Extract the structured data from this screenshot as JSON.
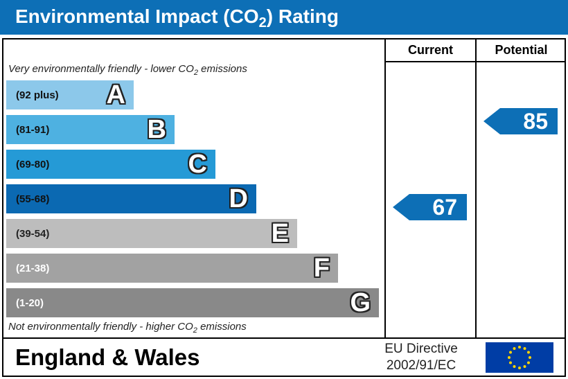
{
  "header": {
    "title_main": "Environmental Impact (CO",
    "title_sub": "2",
    "title_end": ") Rating"
  },
  "columns": {
    "current": "Current",
    "potential": "Potential"
  },
  "captions": {
    "top_main": "Very environmentally friendly - lower CO",
    "top_sub": "2",
    "top_end": " emissions",
    "bottom_main": "Not environmentally friendly - higher CO",
    "bottom_sub": "2",
    "bottom_end": " emissions"
  },
  "chart_data": {
    "type": "bar",
    "bands": [
      {
        "range": "(92 plus)",
        "letter": "A",
        "color": "#8cc8ea",
        "text_color": "#111111"
      },
      {
        "range": "(81-91)",
        "letter": "B",
        "color": "#4eb1e1",
        "text_color": "#111111"
      },
      {
        "range": "(69-80)",
        "letter": "C",
        "color": "#259ad6",
        "text_color": "#111111"
      },
      {
        "range": "(55-68)",
        "letter": "D",
        "color": "#0b69b2",
        "text_color": "#111111"
      },
      {
        "range": "(39-54)",
        "letter": "E",
        "color": "#bdbdbd",
        "text_color": "#222222"
      },
      {
        "range": "(21-38)",
        "letter": "F",
        "color": "#a2a2a2",
        "text_color": "#ffffff"
      },
      {
        "range": "(1-20)",
        "letter": "G",
        "color": "#898989",
        "text_color": "#ffffff"
      }
    ],
    "current": {
      "value": 67
    },
    "potential": {
      "value": 85
    }
  },
  "footer": {
    "region": "England & Wales",
    "directive_line1": "EU Directive",
    "directive_line2": "2002/91/EC"
  },
  "colors": {
    "accent": "#0d6fb6",
    "flag": "#003da5",
    "stars": "#ffd500"
  }
}
